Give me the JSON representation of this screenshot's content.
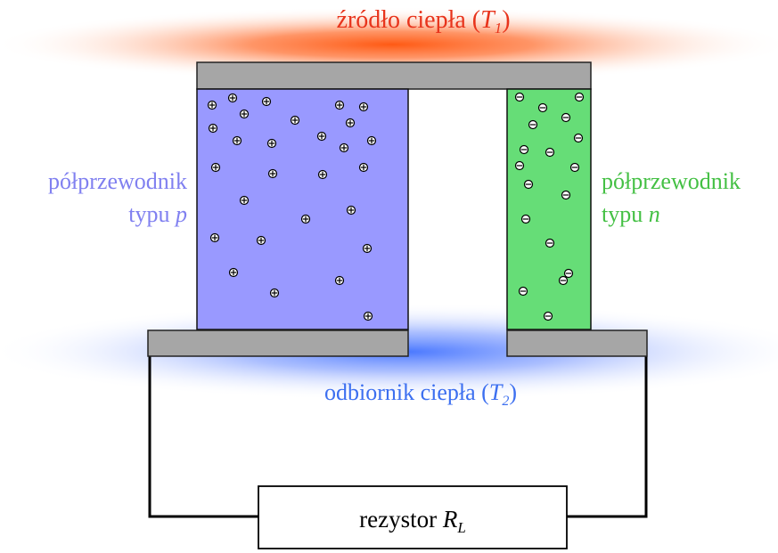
{
  "labels": {
    "heat_source_text": "źródło ciepła (",
    "heat_source_symbol": "T",
    "heat_source_sub": "1",
    "heat_source_close": ")",
    "p_type_line1": "półprzewodnik",
    "p_type_line2_text": "typu ",
    "p_type_line2_symbol": "p",
    "n_type_line1": "półprzewodnik",
    "n_type_line2_text": "typu ",
    "n_type_line2_symbol": "n",
    "heat_sink_text": "odbiornik ciepła (",
    "heat_sink_symbol": "T",
    "heat_sink_sub": "2",
    "heat_sink_close": ")",
    "resistor_text": "rezystor ",
    "resistor_symbol": "R",
    "resistor_sub": "L"
  },
  "colors": {
    "heat_source": "#e8341c",
    "heat_sink": "#3c6ff0",
    "p_type_fill": "#9999ff",
    "p_type_text": "#8080f0",
    "n_type_fill": "#66dd77",
    "n_type_text": "#44c044",
    "plate": "#a6a6a6"
  },
  "carriers": {
    "p_type": "holes",
    "n_type": "electrons"
  }
}
